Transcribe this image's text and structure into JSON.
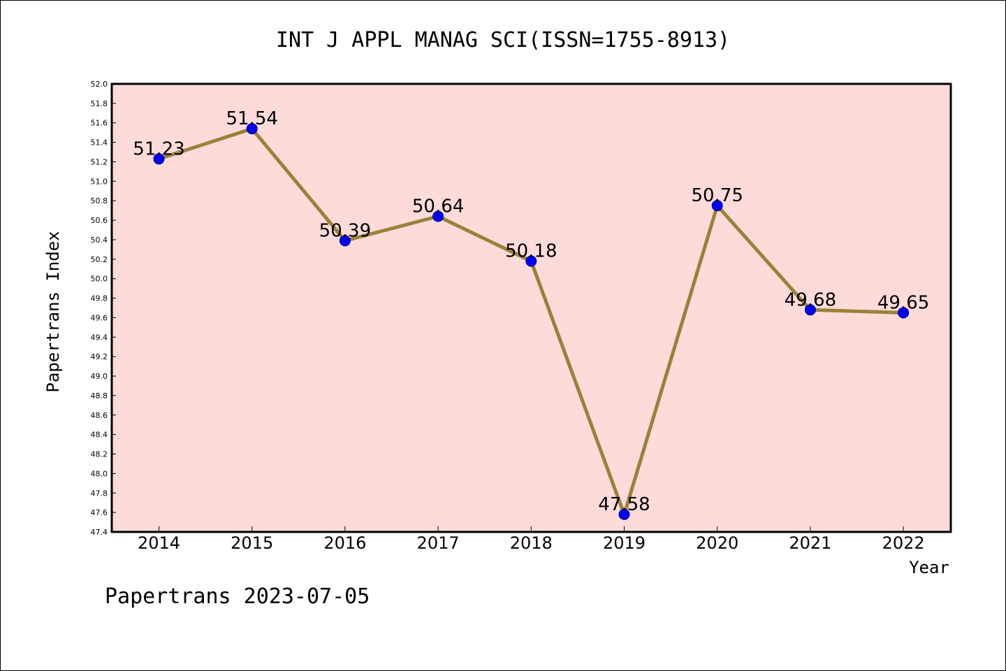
{
  "chart_data": {
    "type": "line",
    "title": "INT J APPL MANAG SCI(ISSN=1755-8913)",
    "xlabel": "Year",
    "ylabel": "Papertrans Index",
    "categories": [
      "2014",
      "2015",
      "2016",
      "2017",
      "2018",
      "2019",
      "2020",
      "2021",
      "2022"
    ],
    "series": [
      {
        "values": [
          51.23,
          51.54,
          50.39,
          50.64,
          50.18,
          47.58,
          50.75,
          49.68,
          49.65
        ]
      }
    ],
    "data_labels": [
      "51.23",
      "51.54",
      "50.39",
      "50.64",
      "50.18",
      "47.58",
      "50.75",
      "49.68",
      "49.65"
    ],
    "yticks": [
      "47.4",
      "47.6",
      "47.8",
      "48.0",
      "48.2",
      "48.4",
      "48.6",
      "48.8",
      "49.0",
      "49.2",
      "49.4",
      "49.6",
      "49.8",
      "50.0",
      "50.2",
      "50.4",
      "50.6",
      "50.8",
      "51.0",
      "51.2",
      "51.4",
      "51.6",
      "51.8",
      "52.0"
    ],
    "ylim": [
      47.4,
      52.0
    ],
    "grid": false,
    "colors": {
      "plot_background": "#fddbd9",
      "line": "#9a8138",
      "marker": "#0000ff",
      "marker_edge": "#00007f"
    }
  },
  "footer": "Papertrans 2023-07-05"
}
